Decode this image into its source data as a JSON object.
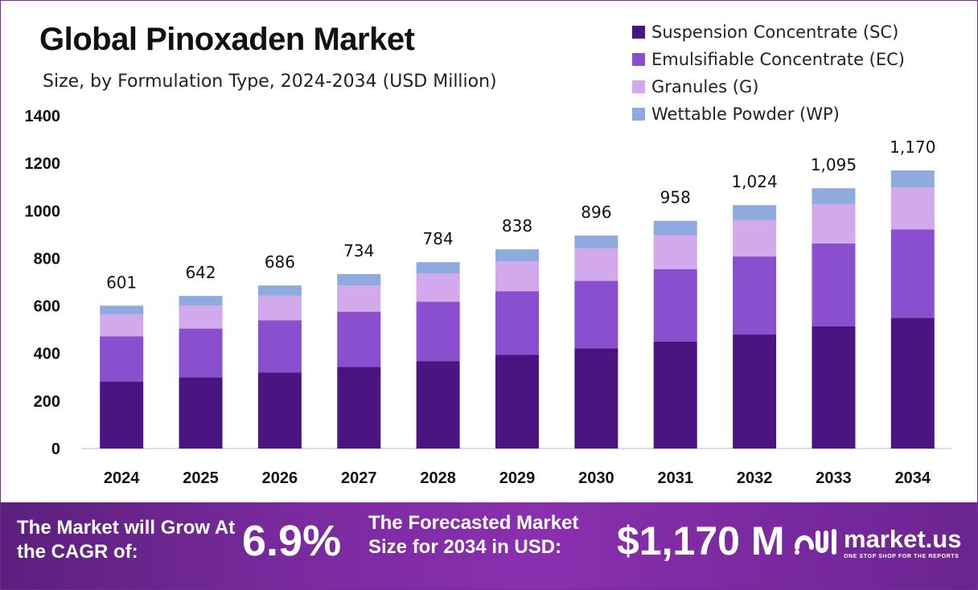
{
  "title": "Global Pinoxaden Market",
  "subtitle": "Size, by Formulation Type, 2024-2034 (USD Million)",
  "legend": [
    {
      "label": "Suspension Concentrate (SC)",
      "color": "#4a1580"
    },
    {
      "label": "Emulsifiable Concentrate (EC)",
      "color": "#8a4fcf"
    },
    {
      "label": "Granules (G)",
      "color": "#d3a9ee"
    },
    {
      "label": "Wettable Powder (WP)",
      "color": "#8faade"
    }
  ],
  "chart_data": {
    "type": "bar",
    "stacked": true,
    "categories": [
      "2024",
      "2025",
      "2026",
      "2027",
      "2028",
      "2029",
      "2030",
      "2031",
      "2032",
      "2033",
      "2034"
    ],
    "series": [
      {
        "name": "Suspension Concentrate (SC)",
        "color": "#4a1580",
        "values": [
          282,
          300,
          320,
          343,
          368,
          395,
          422,
          450,
          480,
          515,
          550
        ]
      },
      {
        "name": "Emulsifiable Concentrate (EC)",
        "color": "#8a4fcf",
        "values": [
          190,
          205,
          220,
          233,
          250,
          267,
          283,
          305,
          328,
          348,
          372
        ]
      },
      {
        "name": "Granules (G)",
        "color": "#d3a9ee",
        "values": [
          93,
          97,
          103,
          110,
          118,
          126,
          137,
          143,
          153,
          165,
          176
        ]
      },
      {
        "name": "Wettable Powder (WP)",
        "color": "#8faade",
        "values": [
          36,
          40,
          43,
          48,
          48,
          50,
          54,
          60,
          63,
          67,
          72
        ]
      }
    ],
    "totals": [
      601,
      642,
      686,
      734,
      784,
      838,
      896,
      958,
      1024,
      1095,
      1170
    ],
    "total_labels": [
      "601",
      "642",
      "686",
      "734",
      "784",
      "838",
      "896",
      "958",
      "1,024",
      "1,095",
      "1,170"
    ],
    "y_ticks": [
      "0",
      "200",
      "400",
      "600",
      "800",
      "1000",
      "1200",
      "1400"
    ],
    "ylim": [
      0,
      1400
    ],
    "grid": false,
    "legend_position": "top-right"
  },
  "footer": {
    "cagr_label": "The Market will Grow At the CAGR of:",
    "cagr_value": "6.9%",
    "forecast_label": "The Forecasted Market Size for 2034 in USD:",
    "forecast_value": "$1,170 M",
    "brand_name": "market.us",
    "brand_tagline": "ONE STOP SHOP FOR THE REPORTS"
  }
}
